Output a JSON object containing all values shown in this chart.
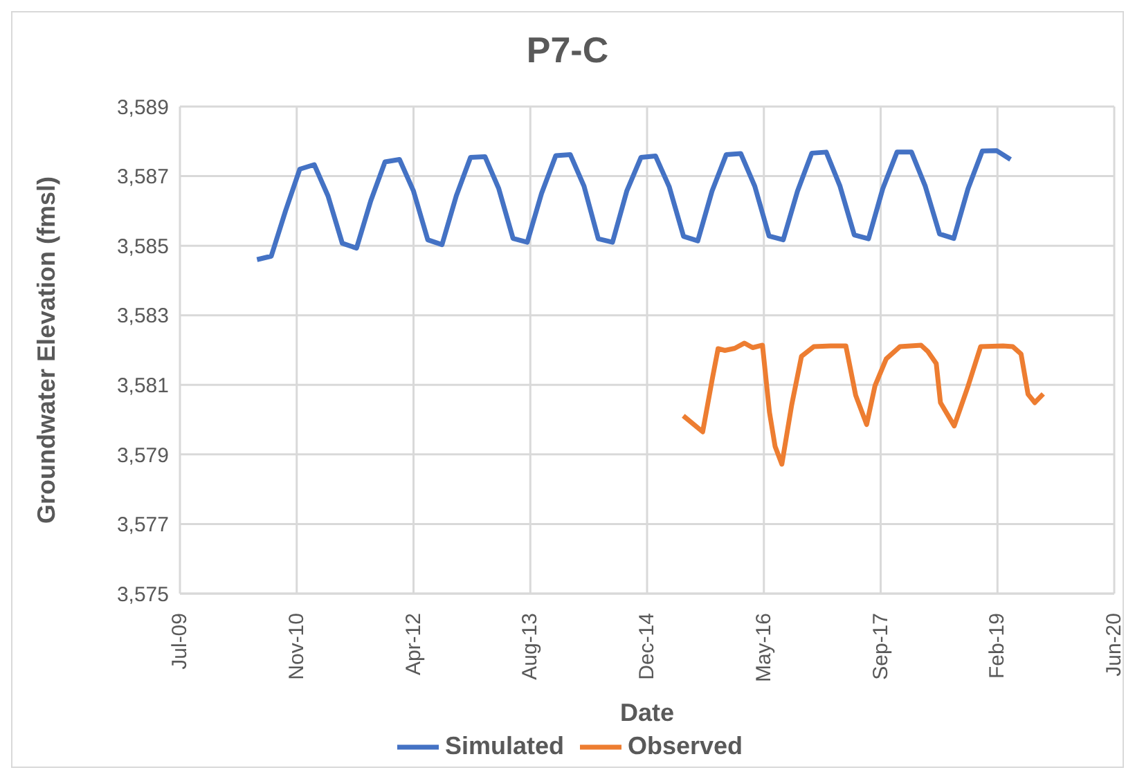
{
  "chart_data": {
    "type": "line",
    "title": "P7-C",
    "xlabel": "Date",
    "ylabel": "Groundwater Elevation (fmsl)",
    "xlim": [
      "2009-07-06",
      "2020-06-18"
    ],
    "xticks": [
      {
        "value": "2009-07-06",
        "label": "Jul-09"
      },
      {
        "value": "2010-11-18",
        "label": "Nov-10"
      },
      {
        "value": "2012-04-01",
        "label": "Apr-12"
      },
      {
        "value": "2013-08-14",
        "label": "Aug-13"
      },
      {
        "value": "2014-12-27",
        "label": "Dec-14"
      },
      {
        "value": "2016-05-10",
        "label": "May-16"
      },
      {
        "value": "2017-09-22",
        "label": "Sep-17"
      },
      {
        "value": "2019-02-04",
        "label": "Feb-19"
      },
      {
        "value": "2020-06-18",
        "label": "Jun-20"
      }
    ],
    "ylim": [
      3575,
      3589
    ],
    "yticks": [
      {
        "value": 3575,
        "label": "3,575"
      },
      {
        "value": 3577,
        "label": "3,577"
      },
      {
        "value": 3579,
        "label": "3,579"
      },
      {
        "value": 3581,
        "label": "3,581"
      },
      {
        "value": 3583,
        "label": "3,583"
      },
      {
        "value": 3585,
        "label": "3,585"
      },
      {
        "value": 3587,
        "label": "3,587"
      },
      {
        "value": 3589,
        "label": "3,589"
      }
    ],
    "grid": true,
    "legend": "bottom",
    "marker": "none",
    "line_style": "solid",
    "series": [
      {
        "name": "Simulated",
        "color": "#4472c4",
        "x": [
          "2010-06",
          "2010-08",
          "2010-10",
          "2010-12",
          "2011-02",
          "2011-04",
          "2011-06",
          "2011-08",
          "2011-10",
          "2011-12",
          "2012-02",
          "2012-04",
          "2012-06",
          "2012-08",
          "2012-10",
          "2012-12",
          "2013-02",
          "2013-04",
          "2013-06",
          "2013-08",
          "2013-10",
          "2013-12",
          "2014-02",
          "2014-04",
          "2014-06",
          "2014-08",
          "2014-10",
          "2014-12",
          "2015-02",
          "2015-04",
          "2015-06",
          "2015-08",
          "2015-10",
          "2015-12",
          "2016-02",
          "2016-04",
          "2016-06",
          "2016-08",
          "2016-10",
          "2016-12",
          "2017-02",
          "2017-04",
          "2017-06",
          "2017-08",
          "2017-10",
          "2017-12",
          "2018-02",
          "2018-04",
          "2018-06",
          "2018-08",
          "2018-10",
          "2018-12",
          "2019-02",
          "2019-04"
        ],
        "values": [
          3584.6,
          3584.7,
          3586.0,
          3587.2,
          3587.33,
          3586.43,
          3585.07,
          3584.93,
          3586.29,
          3587.41,
          3587.48,
          3586.57,
          3585.17,
          3585.03,
          3586.43,
          3587.54,
          3587.56,
          3586.64,
          3585.21,
          3585.1,
          3586.5,
          3587.59,
          3587.62,
          3586.71,
          3585.2,
          3585.1,
          3586.57,
          3587.54,
          3587.58,
          3586.69,
          3585.27,
          3585.14,
          3586.57,
          3587.62,
          3587.65,
          3586.71,
          3585.28,
          3585.17,
          3586.57,
          3587.66,
          3587.69,
          3586.71,
          3585.31,
          3585.2,
          3586.64,
          3587.69,
          3587.69,
          3586.71,
          3585.34,
          3585.21,
          3586.64,
          3587.72,
          3587.73,
          3587.48
        ]
      },
      {
        "name": "Observed",
        "color": "#ed7d31",
        "x": [
          "2015-05-31",
          "2015-08-22",
          "2015-10-03",
          "2015-10-27",
          "2015-11-25",
          "2016-01-06",
          "2016-02-17",
          "2016-03-23",
          "2016-05-04",
          "2016-06-03",
          "2016-06-27",
          "2016-07-26",
          "2016-09-06",
          "2016-10-18",
          "2016-12-10",
          "2017-02-20",
          "2017-04-26",
          "2017-06-07",
          "2017-07-24",
          "2017-08-29",
          "2017-10-16",
          "2017-12-14",
          "2018-03-14",
          "2018-04-12",
          "2018-05-18",
          "2018-06-05",
          "2018-08-03",
          "2018-10-02",
          "2018-11-24",
          "2019-02-28",
          "2019-04-10",
          "2019-05-16",
          "2019-06-15",
          "2019-07-14",
          "2019-08-19"
        ],
        "values": [
          3580.11,
          3579.65,
          3581.2,
          3582.04,
          3581.99,
          3582.05,
          3582.2,
          3582.07,
          3582.14,
          3580.21,
          3579.23,
          3578.72,
          3580.42,
          3581.82,
          3582.1,
          3582.12,
          3582.12,
          3580.7,
          3579.86,
          3580.98,
          3581.75,
          3582.1,
          3582.14,
          3581.96,
          3581.61,
          3580.49,
          3579.82,
          3580.98,
          3582.1,
          3582.12,
          3582.1,
          3581.89,
          3580.73,
          3580.49,
          3580.74
        ]
      }
    ]
  }
}
